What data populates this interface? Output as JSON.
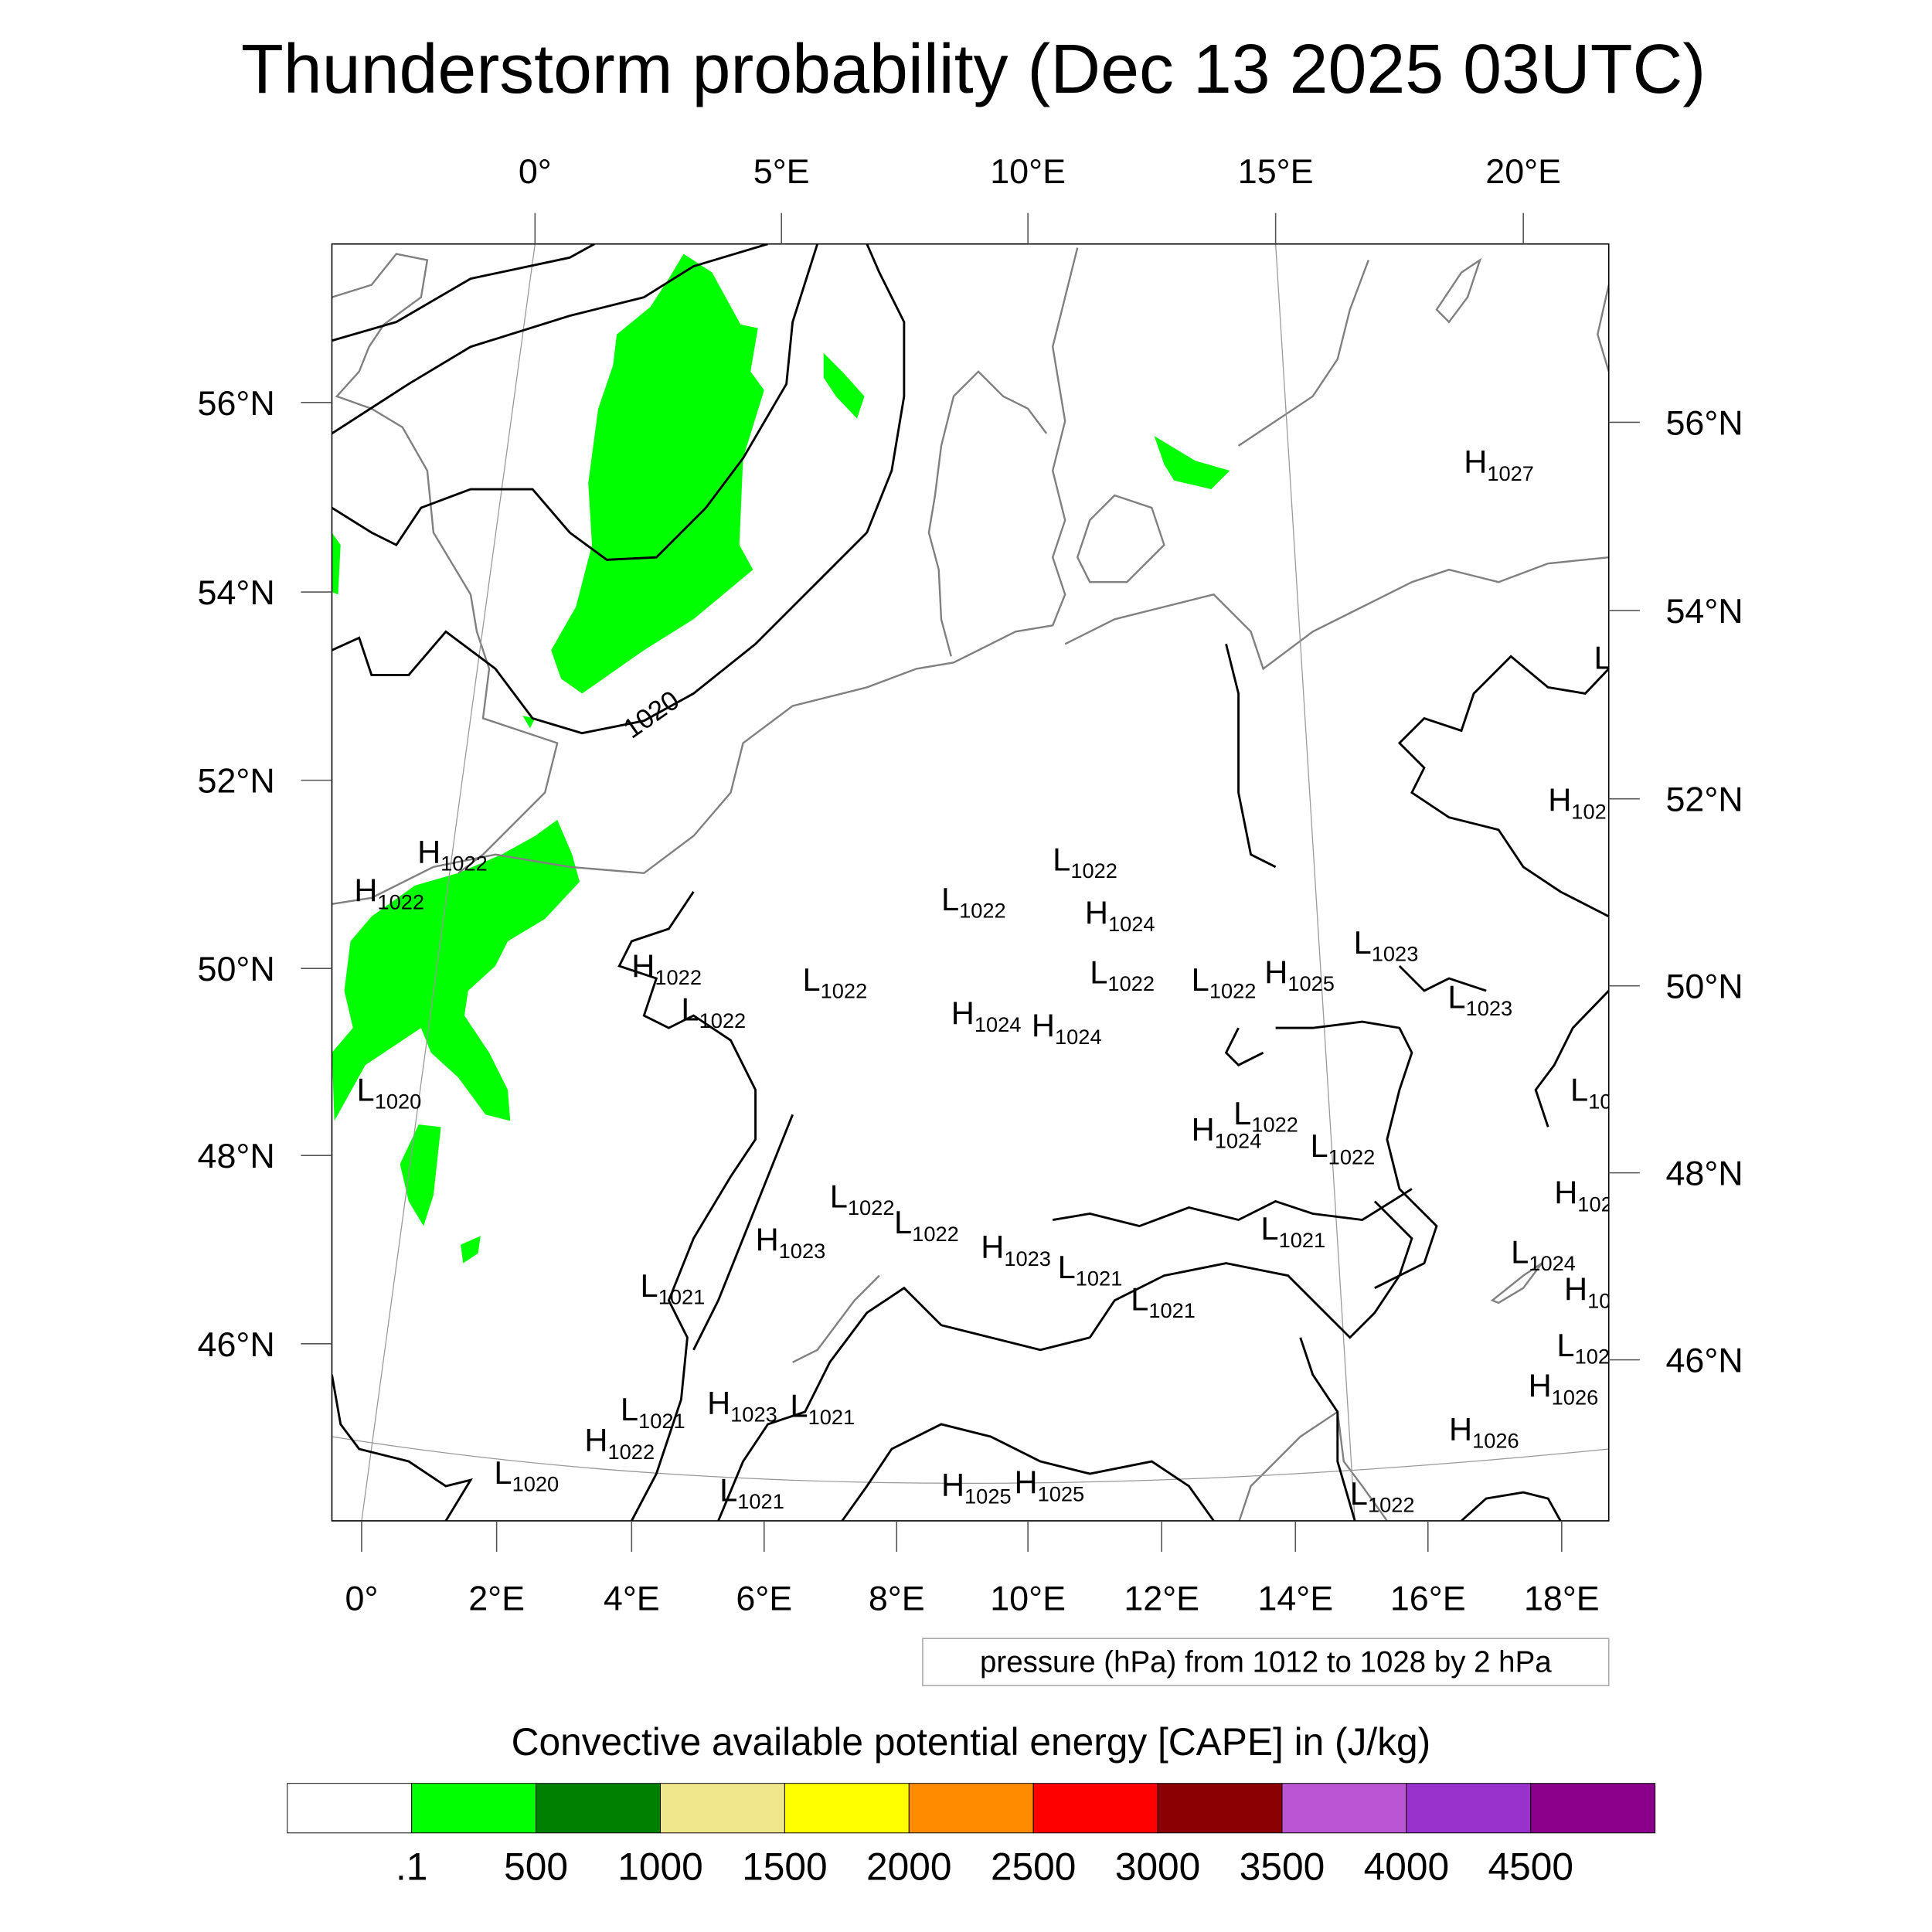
{
  "title": "Thunderstorm probability (Dec 13 2025 03UTC)",
  "axes": {
    "top_lon": [
      "0°",
      "5°E",
      "10°E",
      "15°E",
      "20°E"
    ],
    "bottom_lon": [
      "0°",
      "2°E",
      "4°E",
      "6°E",
      "8°E",
      "10°E",
      "12°E",
      "14°E",
      "16°E",
      "18°E"
    ],
    "left_lat": [
      "56°N",
      "54°N",
      "52°N",
      "50°N",
      "48°N",
      "46°N"
    ],
    "right_lat": [
      "56°N",
      "54°N",
      "52°N",
      "50°N",
      "48°N",
      "46°N"
    ]
  },
  "contour_label": "1020",
  "pressure_centers": [
    {
      "t": "H",
      "v": "1027"
    },
    {
      "t": "H",
      "v": "1022"
    },
    {
      "t": "H",
      "v": "1022"
    },
    {
      "t": "L",
      "v": "1022"
    },
    {
      "t": "L",
      "v": "1022"
    },
    {
      "t": "H",
      "v": "1024"
    },
    {
      "t": "H",
      "v": "1022"
    },
    {
      "t": "L",
      "v": "1022"
    },
    {
      "t": "L",
      "v": "1022"
    },
    {
      "t": "L",
      "v": "1022"
    },
    {
      "t": "L",
      "v": "1022"
    },
    {
      "t": "H",
      "v": "1025"
    },
    {
      "t": "L",
      "v": "1023"
    },
    {
      "t": "L",
      "v": "1023"
    },
    {
      "t": "H",
      "v": "1024"
    },
    {
      "t": "H",
      "v": "1024"
    },
    {
      "t": "L",
      "v": "1020"
    },
    {
      "t": "L",
      "v": "1022"
    },
    {
      "t": "H",
      "v": "1024"
    },
    {
      "t": "L",
      "v": "1022"
    },
    {
      "t": "L",
      "v": "1022"
    },
    {
      "t": "H",
      "v": "1023"
    },
    {
      "t": "L",
      "v": "1022"
    },
    {
      "t": "H",
      "v": "1023"
    },
    {
      "t": "L",
      "v": "1021"
    },
    {
      "t": "L",
      "v": "1021"
    },
    {
      "t": "L",
      "v": "1021"
    },
    {
      "t": "L",
      "v": "1024"
    },
    {
      "t": "H",
      "v": "1026"
    },
    {
      "t": "H",
      "v": "1026"
    },
    {
      "t": "H",
      "v": "1023"
    },
    {
      "t": "L",
      "v": "1021"
    },
    {
      "t": "L",
      "v": "1021"
    },
    {
      "t": "H",
      "v": "1022"
    },
    {
      "t": "L",
      "v": "1020"
    },
    {
      "t": "L",
      "v": "1021"
    },
    {
      "t": "H",
      "v": "1025"
    },
    {
      "t": "H",
      "v": "1025"
    },
    {
      "t": "L",
      "v": "1022"
    },
    {
      "t": "L",
      "v": "1021"
    },
    {
      "t": "H",
      "v": "102"
    },
    {
      "t": "L",
      "v": "10"
    },
    {
      "t": "H",
      "v": "102"
    },
    {
      "t": "H",
      "v": "10"
    },
    {
      "t": "L",
      "v": "102"
    },
    {
      "t": "L",
      "v": ""
    }
  ],
  "contour_info": "pressure (hPa) from 1012 to 1028 by 2 hPa",
  "colorbar": {
    "title": "Convective available potential energy [CAPE] in (J/kg)",
    "colors": [
      "#ffffff",
      "#00ff00",
      "#008000",
      "#f0e68c",
      "#ffff00",
      "#ff8c00",
      "#ff0000",
      "#8b0000",
      "#ba55d3",
      "#9932cc",
      "#8b008b"
    ],
    "labels": [
      ".1",
      "500",
      "1000",
      "1500",
      "2000",
      "2500",
      "3000",
      "3500",
      "4000",
      "4500"
    ]
  },
  "cape_color": "#00ff00"
}
